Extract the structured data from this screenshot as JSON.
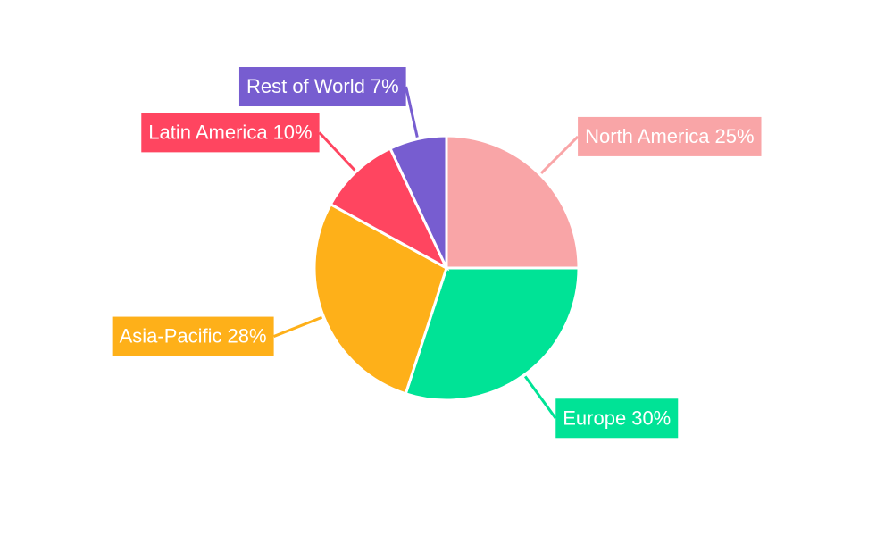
{
  "chart_data": {
    "type": "pie",
    "categories": [
      "North America",
      "Europe",
      "Asia-Pacific",
      "Latin America",
      "Rest of World"
    ],
    "values": [
      25,
      30,
      28,
      10,
      7
    ],
    "value_labels": [
      "25%",
      "30%",
      "28%",
      "10%",
      "7%"
    ],
    "colors": [
      "#f9a5a7",
      "#00e396",
      "#feb019",
      "#ff4560",
      "#775dd0"
    ]
  }
}
